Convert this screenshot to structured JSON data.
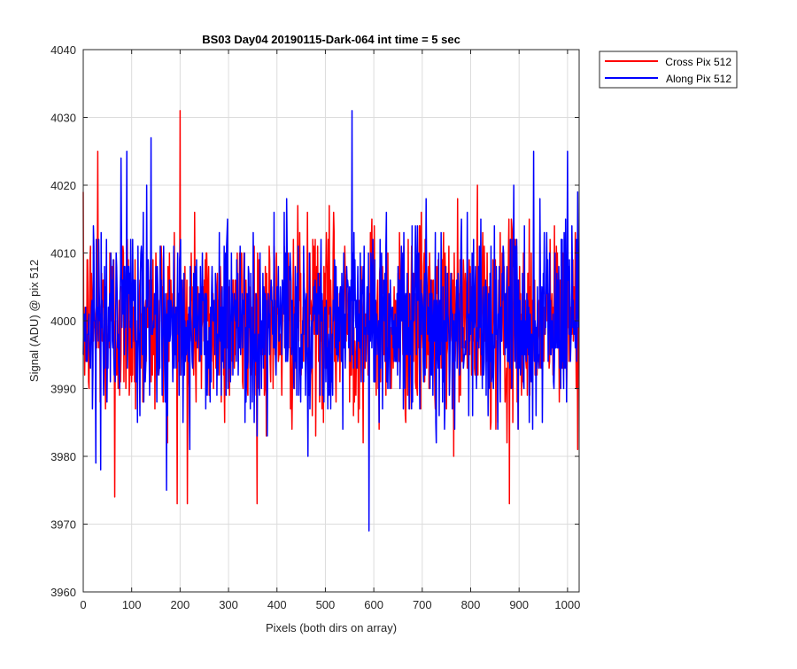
{
  "chart_data": {
    "type": "line",
    "title": "BS03 Day04 20190115-Dark-064 int time = 5 sec",
    "xlabel": "Pixels (both dirs on array)",
    "ylabel": "Signal (ADU) @ pix 512",
    "xlim": [
      0,
      1024
    ],
    "ylim": [
      3960,
      4040
    ],
    "xticks": [
      0,
      100,
      200,
      300,
      400,
      500,
      600,
      700,
      800,
      900,
      1000
    ],
    "yticks": [
      3960,
      3970,
      3980,
      3990,
      4000,
      4010,
      4020,
      4030,
      4040
    ],
    "grid": true,
    "legend_position": "outside-top-right",
    "series": [
      {
        "name": "Cross Pix 512",
        "color": "#ff0000",
        "noise": {
          "mean": 4000,
          "std": 7,
          "n_points": 1024,
          "min": 3973,
          "max": 4031
        },
        "peaks": [
          [
            30,
            4025
          ],
          [
            65,
            3974
          ],
          [
            200,
            4031
          ],
          [
            215,
            3973
          ],
          [
            880,
            3973
          ]
        ]
      },
      {
        "name": "Along Pix 512",
        "color": "#0000ff",
        "noise": {
          "mean": 4000,
          "std": 7,
          "n_points": 1024,
          "min": 3969,
          "max": 4031
        },
        "peaks": [
          [
            90,
            4025
          ],
          [
            140,
            4027
          ],
          [
            555,
            4031
          ],
          [
            590,
            3969
          ],
          [
            930,
            4025
          ],
          [
            1000,
            4025
          ]
        ]
      }
    ]
  }
}
